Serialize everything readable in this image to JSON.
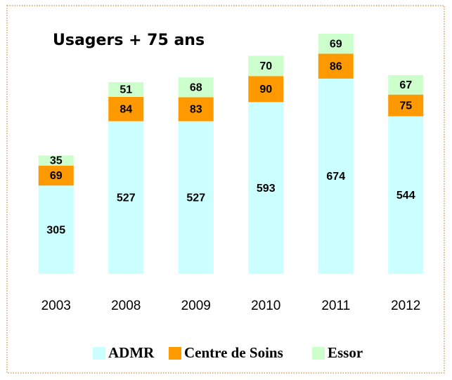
{
  "chart_data": {
    "type": "stacked-bar",
    "title": "Usagers + 75 ans",
    "categories": [
      "2003",
      "2008",
      "2009",
      "2010",
      "2011",
      "2012"
    ],
    "series": [
      {
        "name": "ADMR",
        "color": "#ccffff",
        "values": [
          305,
          527,
          527,
          593,
          674,
          544
        ]
      },
      {
        "name": "Centre de Soins",
        "color": "#ff9900",
        "values": [
          69,
          84,
          83,
          90,
          86,
          75
        ]
      },
      {
        "name": "Essor",
        "color": "#ccffcc",
        "values": [
          35,
          51,
          68,
          70,
          69,
          67
        ]
      }
    ],
    "legend": "bottom"
  }
}
